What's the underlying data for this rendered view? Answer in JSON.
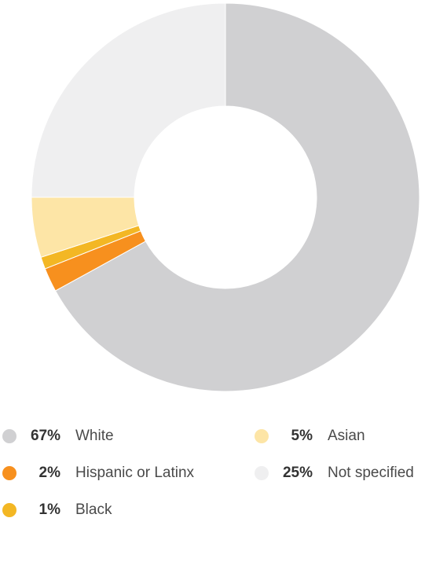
{
  "chart_data": {
    "type": "donut",
    "categories": [
      "White",
      "Hispanic or Latinx",
      "Black",
      "Asian",
      "Not specified"
    ],
    "values": [
      67,
      2,
      1,
      5,
      25
    ],
    "value_labels": [
      "67%",
      "2%",
      "1%",
      "5%",
      "25%"
    ],
    "colors": [
      "#d0d0d2",
      "#f7901e",
      "#f3b724",
      "#fde5a6",
      "#efeff0"
    ]
  }
}
